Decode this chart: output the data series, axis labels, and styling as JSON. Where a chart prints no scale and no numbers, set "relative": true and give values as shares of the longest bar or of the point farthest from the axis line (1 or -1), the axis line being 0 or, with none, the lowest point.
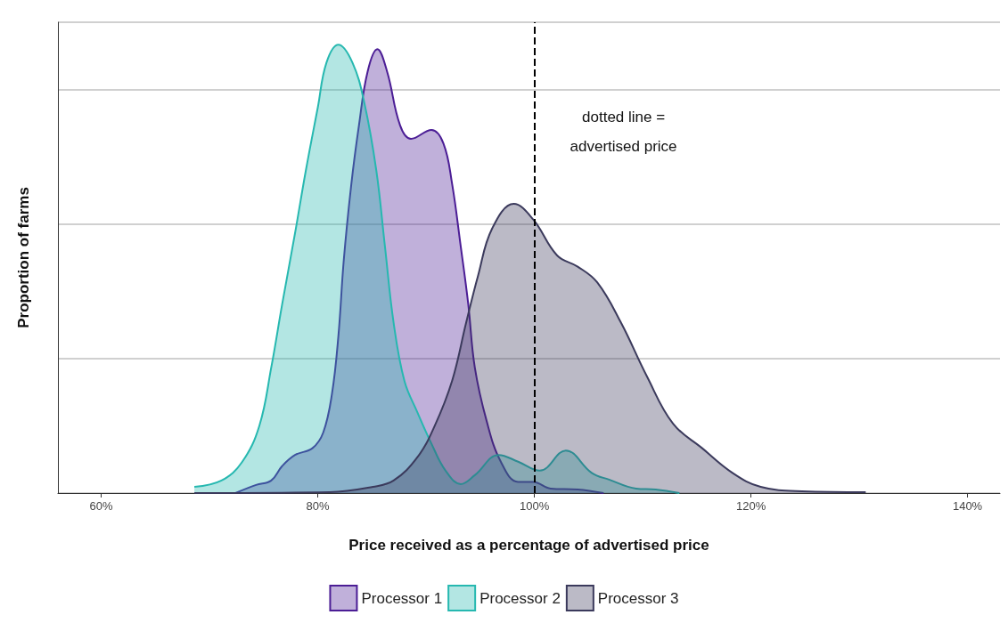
{
  "chart_data": {
    "type": "area",
    "relative": true,
    "xlabel": "Price received as a percentage of advertised price",
    "ylabel": "Proportion of farms",
    "xlim": [
      56,
      143
    ],
    "xticks": [
      {
        "value": 60,
        "label": "60%"
      },
      {
        "value": 80,
        "label": "80%"
      },
      {
        "value": 100,
        "label": "100%"
      },
      {
        "value": 120,
        "label": "120%"
      },
      {
        "value": 140,
        "label": "140%"
      }
    ],
    "grid": "y",
    "legend": "bottom",
    "ref_lines": [
      {
        "axis": "x",
        "value": 100,
        "color": "#000000",
        "line_style": "dashed"
      }
    ],
    "annotations": [
      "dotted line =\nadvertised price"
    ],
    "series": [
      {
        "name": "Processor 1",
        "color": "#4b1d95",
        "x": [
          72.4,
          74.3,
          75.7,
          76.7,
          77.9,
          79.5,
          80.5,
          81.3,
          81.9,
          82.4,
          83.1,
          83.8,
          84.6,
          85.5,
          86.4,
          87.6,
          88.6,
          90.5,
          91.6,
          92.4,
          93.2,
          93.9,
          94.5,
          95.6,
          96.9,
          98.5,
          99.9,
          101.5,
          104.0,
          106.4
        ],
        "values": [
          0,
          0.018,
          0.028,
          0.06,
          0.085,
          0.1,
          0.135,
          0.22,
          0.35,
          0.52,
          0.69,
          0.82,
          0.94,
          0.99,
          0.94,
          0.82,
          0.79,
          0.81,
          0.78,
          0.69,
          0.55,
          0.42,
          0.28,
          0.16,
          0.07,
          0.025,
          0.025,
          0.01,
          0.008,
          0
        ]
      },
      {
        "name": "Processor 2",
        "color": "#26b8b0",
        "x": [
          68.6,
          71.1,
          73.0,
          74.6,
          75.7,
          76.7,
          77.9,
          78.9,
          80.0,
          80.8,
          81.9,
          83.2,
          84.3,
          85.4,
          86.2,
          87.0,
          88.0,
          89.2,
          90.5,
          91.8,
          93.2,
          94.5,
          96.7,
          98.5,
          100.5,
          102.9,
          105.3,
          106.9,
          109.4,
          111.2,
          113.4
        ],
        "values": [
          0.014,
          0.028,
          0.069,
          0.15,
          0.28,
          0.42,
          0.58,
          0.72,
          0.86,
          0.96,
          1,
          0.96,
          0.87,
          0.72,
          0.55,
          0.38,
          0.25,
          0.18,
          0.11,
          0.05,
          0.02,
          0.04,
          0.085,
          0.07,
          0.05,
          0.095,
          0.045,
          0.03,
          0.01,
          0.008,
          0
        ]
      },
      {
        "name": "Processor 3",
        "color": "#3b3a5c",
        "x": [
          68.6,
          81.1,
          85.1,
          87.0,
          89.2,
          90.8,
          92.4,
          93.7,
          94.8,
          96.1,
          98.1,
          99.9,
          102.1,
          104.0,
          105.8,
          108.0,
          110.4,
          112.8,
          115.5,
          118.3,
          120.9,
          124.7,
          130.6
        ],
        "values": [
          0,
          0.002,
          0.014,
          0.028,
          0.08,
          0.15,
          0.25,
          0.38,
          0.485,
          0.59,
          0.645,
          0.61,
          0.53,
          0.505,
          0.47,
          0.38,
          0.26,
          0.155,
          0.1,
          0.045,
          0.014,
          0.004,
          0.002
        ]
      }
    ]
  }
}
